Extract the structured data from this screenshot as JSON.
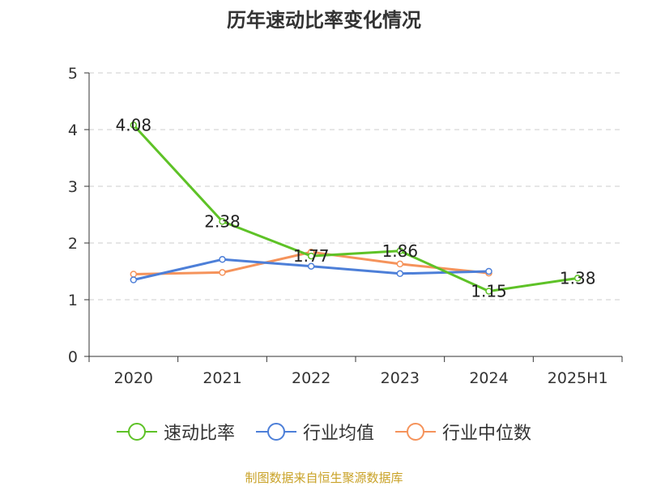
{
  "chart_data": {
    "type": "line",
    "title": "历年速动比率变化情况",
    "categories": [
      "2020",
      "2021",
      "2022",
      "2023",
      "2024",
      "2025H1"
    ],
    "ylim": [
      0,
      5
    ],
    "yticks": [
      0,
      1,
      2,
      3,
      4,
      5
    ],
    "grid": true,
    "legend_position": "bottom",
    "series": [
      {
        "name": "速动比率",
        "color": "#5ec227",
        "values": [
          4.08,
          2.38,
          1.77,
          1.86,
          1.15,
          1.38
        ],
        "labels": [
          "4.08",
          "2.38",
          "1.77",
          "1.86",
          "1.15",
          "1.38"
        ]
      },
      {
        "name": "行业均值",
        "color": "#4d7fd8",
        "values": [
          1.35,
          1.71,
          1.59,
          1.46,
          1.5,
          null
        ]
      },
      {
        "name": "行业中位数",
        "color": "#f5935b",
        "values": [
          1.45,
          1.48,
          1.84,
          1.63,
          1.47,
          null
        ]
      }
    ]
  },
  "source": "制图数据来自恒生聚源数据库"
}
